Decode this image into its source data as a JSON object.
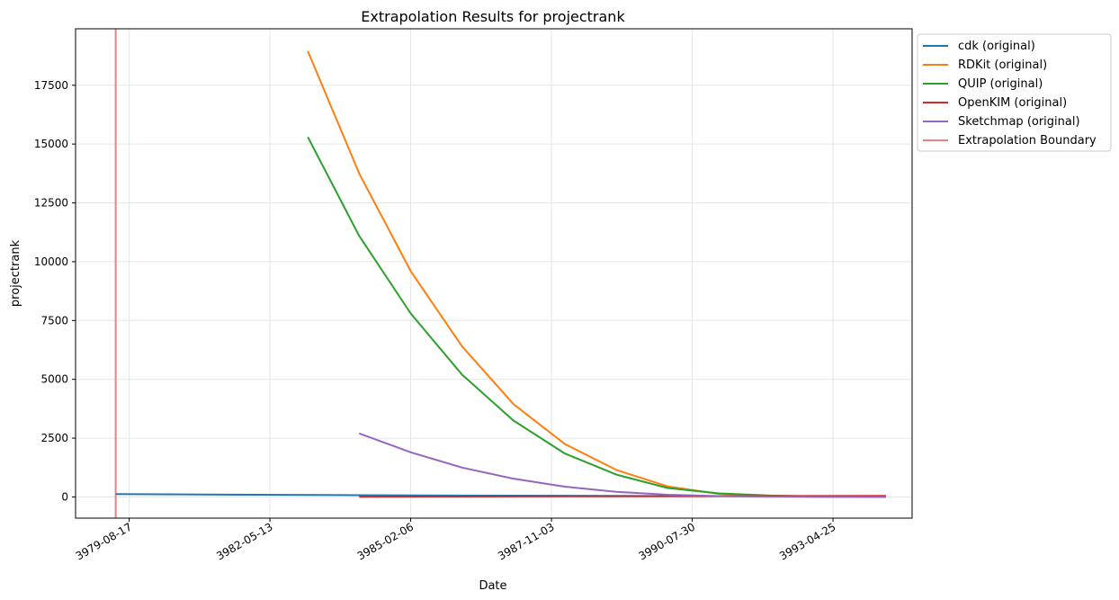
{
  "chart_data": {
    "type": "line",
    "title": "Extrapolation Results for projectrank",
    "xlabel": "Date",
    "ylabel": "projectrank",
    "x_axis": "date",
    "xlim": [
      "3978-08-01",
      "3994-11-08"
    ],
    "ylim": [
      -900,
      19900
    ],
    "x_ticks": [
      "3979-08-17",
      "3982-05-13",
      "3985-02-06",
      "3987-11-03",
      "3990-07-30",
      "3993-04-25"
    ],
    "y_ticks": [
      0,
      2500,
      5000,
      7500,
      10000,
      12500,
      15000,
      17500
    ],
    "grid": true,
    "legend_position": "upper-right, outside",
    "series": [
      {
        "name": "cdk (original)",
        "color": "#1f77b4",
        "x": [
          "3979-05-13",
          "3984-02-06",
          "3994-05-06"
        ],
        "y": [
          120,
          75,
          10
        ]
      },
      {
        "name": "RDKit (original)",
        "color": "#ff7f0e",
        "x": [
          "3983-02-06",
          "3984-02-06",
          "3985-02-06",
          "3986-02-06",
          "3987-02-06",
          "3988-02-06",
          "3989-02-06",
          "3990-02-06",
          "3991-02-06",
          "3992-02-06",
          "3993-02-06",
          "3994-05-06"
        ],
        "y": [
          18950,
          13750,
          9600,
          6400,
          3950,
          2250,
          1150,
          450,
          130,
          30,
          8,
          2
        ]
      },
      {
        "name": "QUIP (original)",
        "color": "#2ca02c",
        "x": [
          "3983-02-06",
          "3984-02-06",
          "3985-02-06",
          "3986-02-06",
          "3987-02-06",
          "3988-02-06",
          "3989-02-06",
          "3990-02-06",
          "3991-02-06",
          "3992-02-06",
          "3993-02-06",
          "3994-05-06"
        ],
        "y": [
          15300,
          11100,
          7800,
          5200,
          3250,
          1850,
          950,
          380,
          150,
          60,
          20,
          5
        ]
      },
      {
        "name": "OpenKIM (original)",
        "color": "#d62728",
        "x": [
          "3984-02-06",
          "3994-05-06"
        ],
        "y": [
          10,
          50
        ]
      },
      {
        "name": "Sketchmap (original)",
        "color": "#9467bd",
        "x": [
          "3984-02-06",
          "3985-02-06",
          "3986-02-06",
          "3987-02-06",
          "3988-02-06",
          "3989-02-06",
          "3990-02-06",
          "3991-02-06",
          "3992-02-06",
          "3993-02-06",
          "3994-05-06"
        ],
        "y": [
          2700,
          1900,
          1250,
          780,
          440,
          220,
          95,
          35,
          12,
          4,
          1
        ]
      }
    ],
    "vline": {
      "name": "Extrapolation Boundary",
      "color": "#f08080",
      "x": "3979-05-13"
    }
  }
}
